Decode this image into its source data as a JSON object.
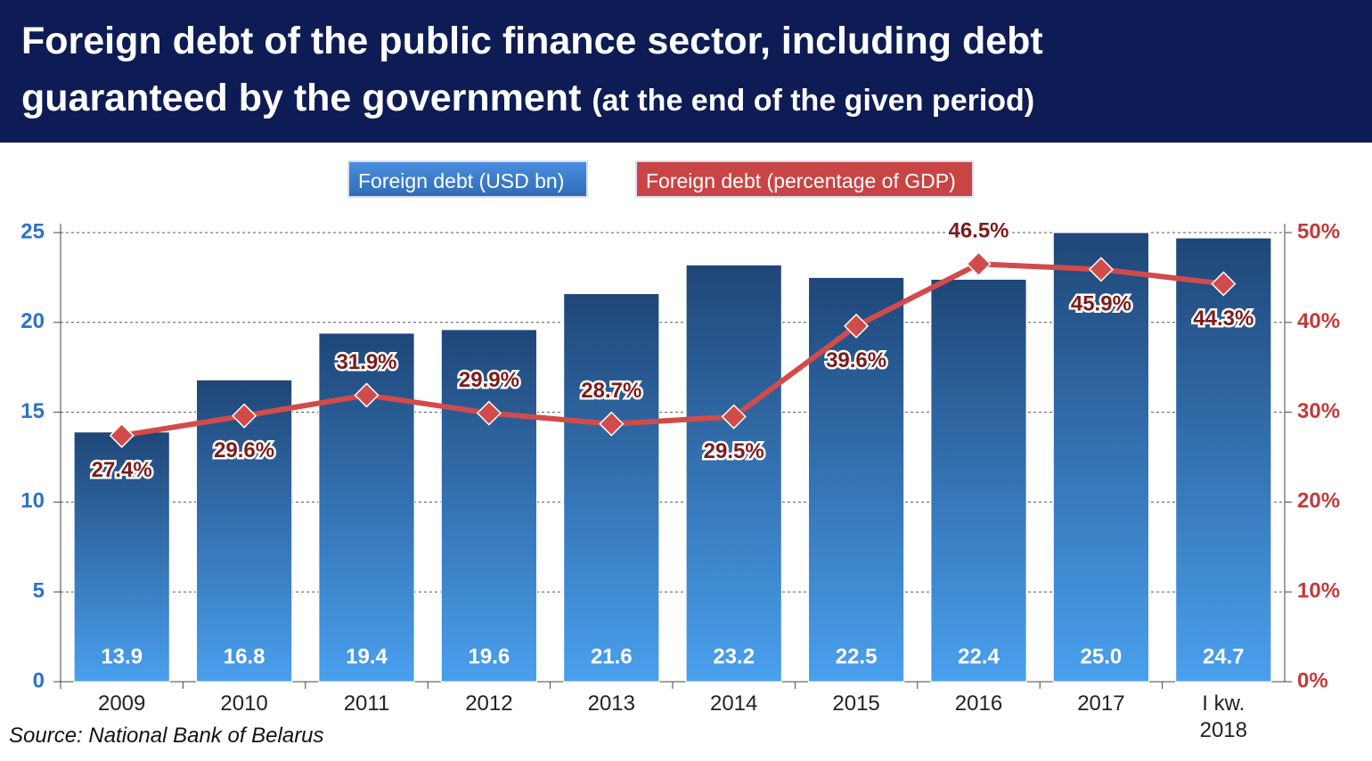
{
  "chart_data": {
    "type": "bar",
    "title": "Foreign debt of the public finance sector, including debt guaranteed by the government",
    "subtitle": "(at the end of the given period)",
    "source": "Source: National Bank of Belarus",
    "categories": [
      "2009",
      "2010",
      "2011",
      "2012",
      "2013",
      "2014",
      "2015",
      "2016",
      "2017",
      "I kw. 2018"
    ],
    "series": [
      {
        "name": "Foreign debt (USD bn)",
        "type": "bar",
        "color": "#2f6db5",
        "axis": "y",
        "values": [
          13.9,
          16.8,
          19.4,
          19.6,
          21.6,
          23.2,
          22.5,
          22.4,
          25.0,
          24.7
        ],
        "value_labels": [
          "13.9",
          "16.8",
          "19.4",
          "19.6",
          "21.6",
          "23.2",
          "22.5",
          "22.4",
          "25.0",
          "24.7"
        ]
      },
      {
        "name": "Foreign debt (percentage of GDP)",
        "type": "line",
        "color": "#d24b4b",
        "axis": "y2",
        "values": [
          27.4,
          29.6,
          31.9,
          29.9,
          28.7,
          29.5,
          39.6,
          46.5,
          45.9,
          44.3
        ],
        "value_labels": [
          "27.4%",
          "29.6%",
          "31.9%",
          "29.9%",
          "28.7%",
          "29.5%",
          "39.6%",
          "46.5%",
          "45.9%",
          "44.3%"
        ]
      }
    ],
    "ylim": [
      0,
      25
    ],
    "yticks": [
      0,
      5,
      10,
      15,
      20,
      25
    ],
    "y2lim": [
      0,
      50
    ],
    "y2ticks": [
      {
        "value": 0,
        "label": "0%"
      },
      {
        "value": 10,
        "label": "10%"
      },
      {
        "value": 20,
        "label": "20%"
      },
      {
        "value": 30,
        "label": "30%"
      },
      {
        "value": 40,
        "label": "40%"
      },
      {
        "value": 50,
        "label": "50%"
      }
    ],
    "grid": true
  }
}
